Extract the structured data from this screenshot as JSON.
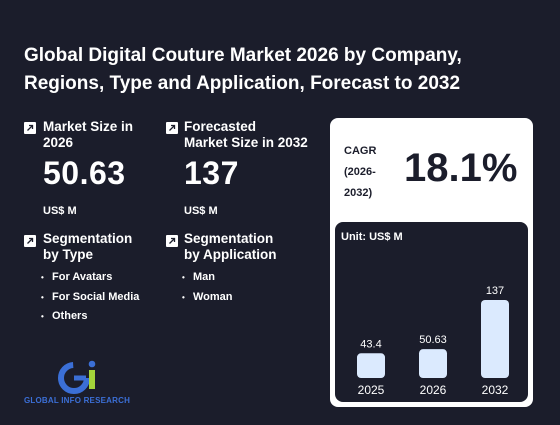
{
  "title": "Global Digital Couture Market 2026 by Company, Regions, Type and Application, Forecast to 2032",
  "market_size": {
    "label_line1": "Market Size in",
    "label_line2": "2026",
    "value": "50.63",
    "unit": "US$ M"
  },
  "forecast_size": {
    "label_line1": "Forecasted",
    "label_line2": "Market Size in 2032",
    "value": "137",
    "unit": "US$ M"
  },
  "segmentation_type": {
    "label_line1": "Segmentation",
    "label_line2": "by Type",
    "items": [
      "For Avatars",
      "For Social Media",
      "Others"
    ]
  },
  "segmentation_application": {
    "label_line1": "Segmentation",
    "label_line2": "by Application",
    "items": [
      "Man",
      "Woman"
    ]
  },
  "cagr": {
    "label_line1": "CAGR",
    "label_line2": "(2026-",
    "label_line3": "2032)",
    "value": "18.1%"
  },
  "logo": {
    "text": "GLOBAL INFO RESEARCH"
  },
  "colors": {
    "background": "#1b1d2b",
    "card": "#ffffff",
    "bar": "#dbeafe",
    "logo_blue": "#3b6fd6",
    "logo_green": "#a3d43a"
  },
  "chart_data": {
    "type": "bar",
    "unit_label": "Unit: US$ M",
    "categories": [
      "2025",
      "2026",
      "2032"
    ],
    "values": [
      43.4,
      50.63,
      137
    ],
    "value_labels": [
      "43.4",
      "50.63",
      "137"
    ]
  }
}
